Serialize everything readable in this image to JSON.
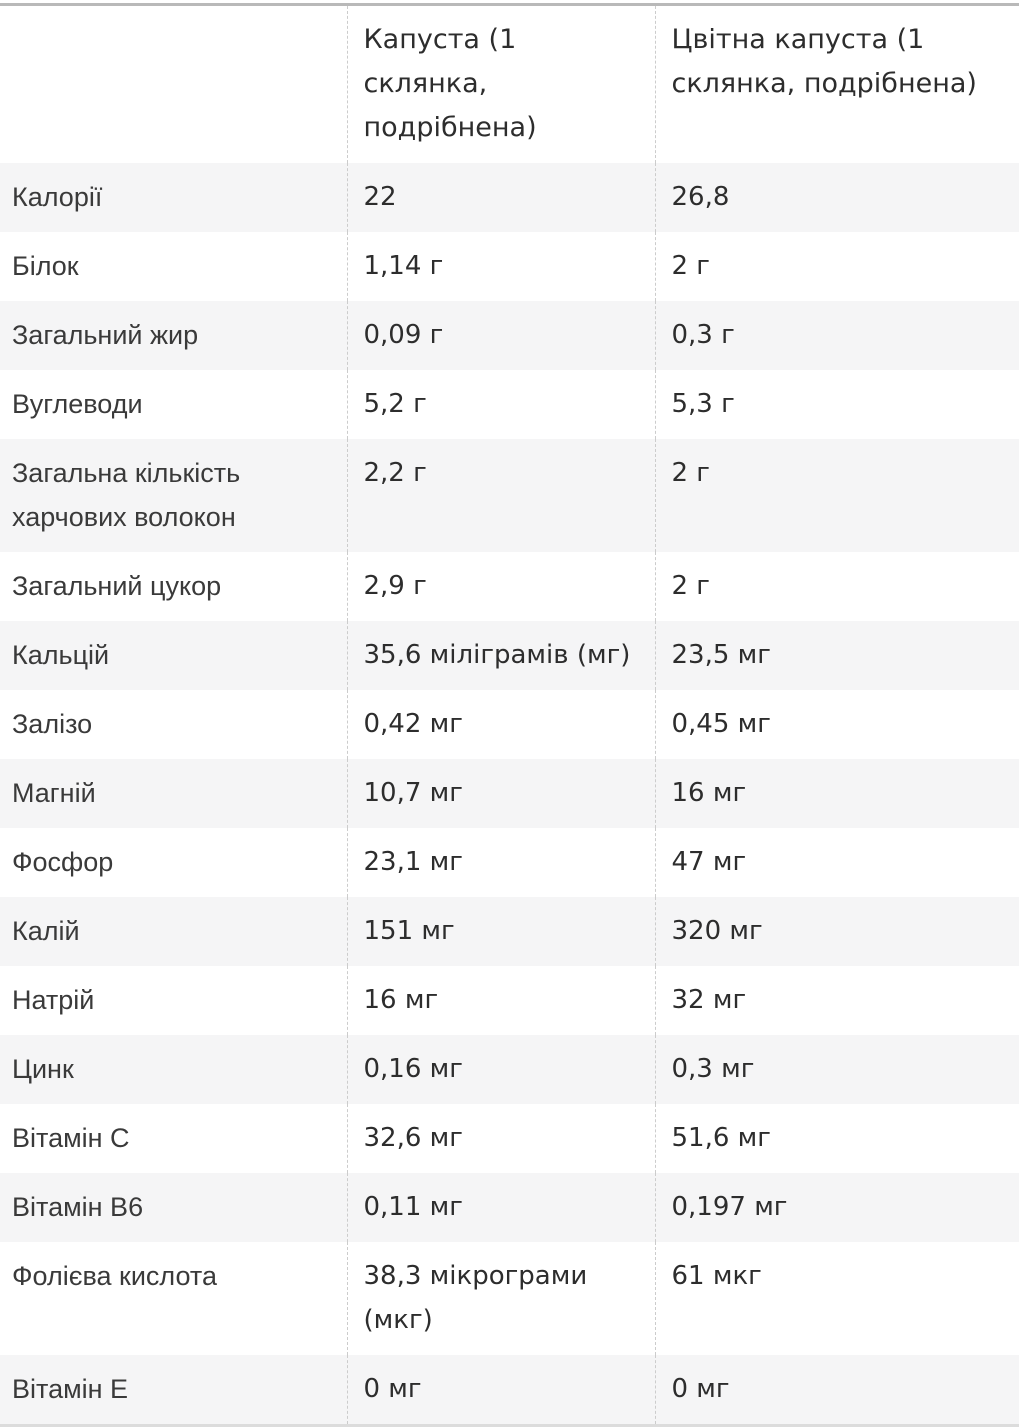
{
  "table": {
    "columns": [
      {
        "label": ""
      },
      {
        "label": "Капуста (1 склянка, подрібнена)"
      },
      {
        "label": "Цвітна капуста (1 склянка, подрібнена)"
      }
    ],
    "rows": [
      {
        "label": "Калорії",
        "kapusta": "22",
        "cvitna": "26,8"
      },
      {
        "label": "Білок",
        "kapusta": "1,14 г",
        "cvitna": "2 г"
      },
      {
        "label": "Загальний жир",
        "kapusta": "0,09 г",
        "cvitna": "0,3 г"
      },
      {
        "label": "Вуглеводи",
        "kapusta": "5,2 г",
        "cvitna": "5,3 г"
      },
      {
        "label": "Загальна кількість харчових волокон",
        "kapusta": "2,2 г",
        "cvitna": "2 г"
      },
      {
        "label": "Загальний цукор",
        "kapusta": "2,9 г",
        "cvitna": "2 г"
      },
      {
        "label": "Кальцій",
        "kapusta": "35,6 міліграмів (мг)",
        "cvitna": "23,5 мг"
      },
      {
        "label": "Залізо",
        "kapusta": "0,42 мг",
        "cvitna": "0,45 мг"
      },
      {
        "label": "Магній",
        "kapusta": "10,7 мг",
        "cvitna": "16 мг"
      },
      {
        "label": "Фосфор",
        "kapusta": "23,1 мг",
        "cvitna": "47 мг"
      },
      {
        "label": "Калій",
        "kapusta": "151 мг",
        "cvitna": "320 мг"
      },
      {
        "label": "Натрій",
        "kapusta": "16 мг",
        "cvitna": "32 мг"
      },
      {
        "label": "Цинк",
        "kapusta": "0,16 мг",
        "cvitna": "0,3 мг"
      },
      {
        "label": "Вітамін C",
        "kapusta": "32,6 мг",
        "cvitna": "51,6 мг"
      },
      {
        "label": "Вітамін B6",
        "kapusta": "0,11 мг",
        "cvitna": "0,197 мг"
      },
      {
        "label": "Фолієва кислота",
        "kapusta": "38,3 мікрограми (мкг)",
        "cvitna": "61 мкг"
      },
      {
        "label": "Вітамін E",
        "kapusta": "0 мг",
        "cvitna": "0 мг"
      }
    ]
  },
  "colors": {
    "row_stripe": "#f5f5f6",
    "border_top": "#b9b9b9",
    "border_bottom": "#dcdcdc",
    "cell_divider": "#cccccc",
    "label_text": "#3a3a3a",
    "value_text": "#2d2d2d",
    "page_background": "#ffffff"
  }
}
